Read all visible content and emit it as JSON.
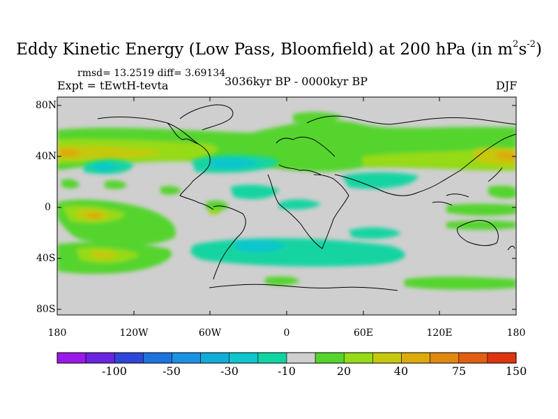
{
  "title": {
    "main": "Eddy Kinetic Energy (Low Pass, Bloomfield) at 200 hPa (in m",
    "sup1": "2",
    "mid": "s",
    "sup2": "-2",
    "close": ")"
  },
  "stats": {
    "rmsd_line": "rmsd= 13.2519 diff= 3.69134"
  },
  "experiment": "Expt = tEwtH-tevta",
  "period": "3036kyr BP - 0000kyr BP",
  "season": "DJF",
  "axes": {
    "y_labels": [
      "80N",
      "40N",
      "0",
      "40S",
      "80S"
    ],
    "x_labels": [
      "180",
      "120W",
      "60W",
      "0",
      "60E",
      "120E",
      "180"
    ]
  },
  "colorbar": {
    "labels": [
      "-100",
      "-50",
      "-30",
      "-10",
      "20",
      "40",
      "75",
      "150"
    ],
    "colors": [
      "#9B19E6",
      "#6A24E0",
      "#2F46D8",
      "#1E72DE",
      "#1B92E1",
      "#12ACD7",
      "#0EC6CC",
      "#12D4A2",
      "#CFCFCF",
      "#55D42D",
      "#97DA16",
      "#C6C80F",
      "#DCAA0C",
      "#E08810",
      "#E25E12",
      "#DE3410"
    ]
  },
  "colors": {
    "ocean_land_bg": "#CFCFCF",
    "coast": "#000000"
  }
}
